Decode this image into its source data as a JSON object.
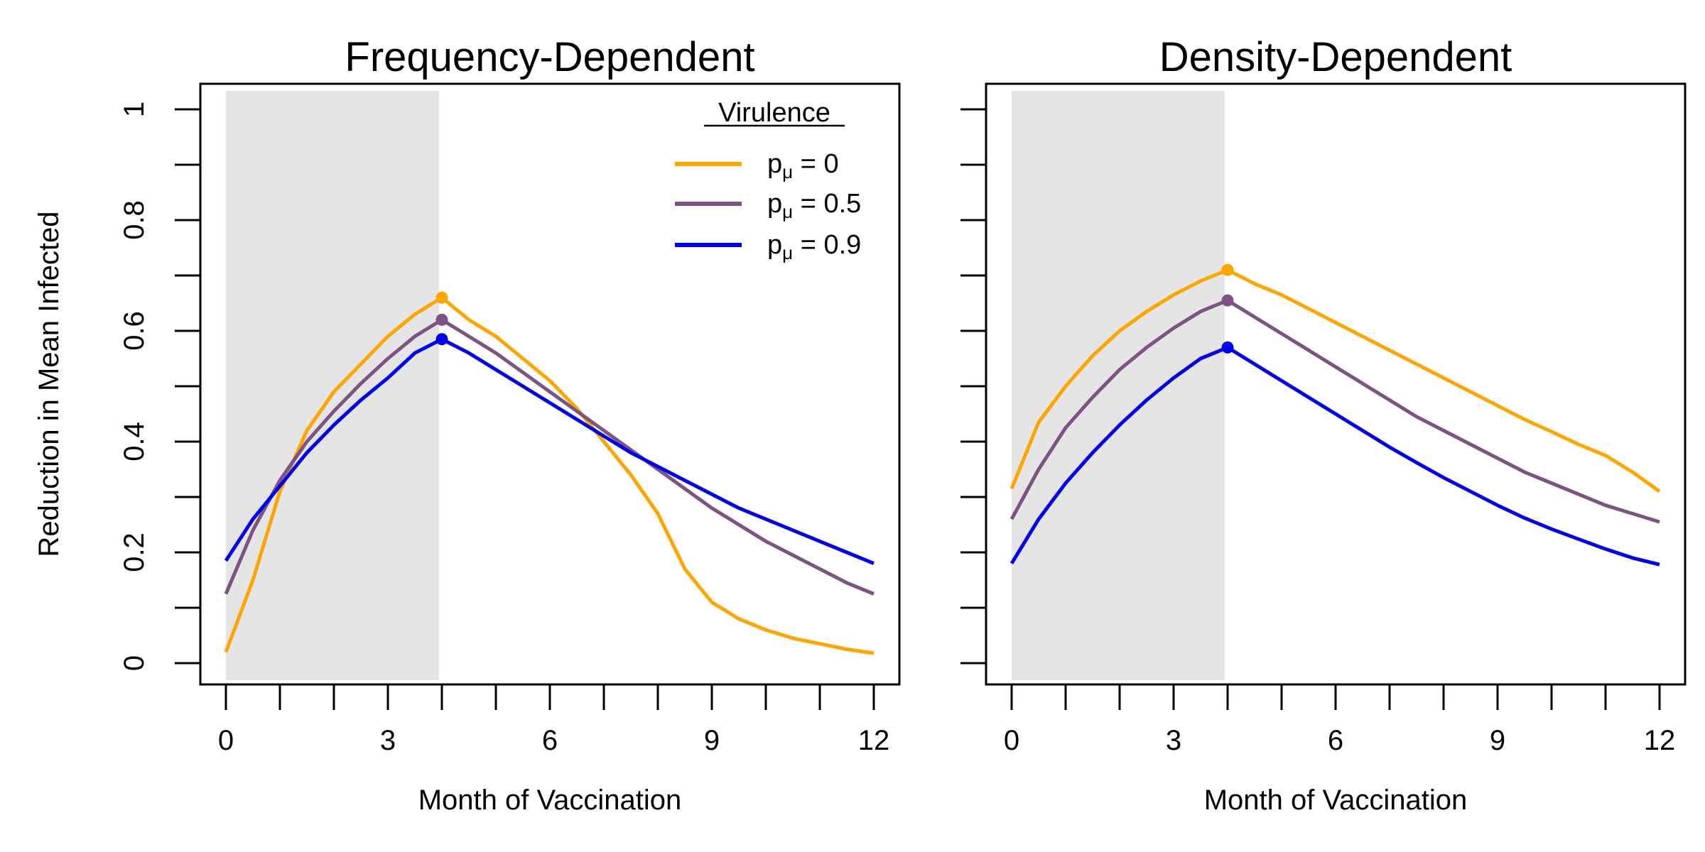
{
  "chart_data": [
    {
      "type": "line",
      "title": "Frequency-Dependent",
      "xlabel": "Month of Vaccination",
      "ylabel": "Reduction in Mean Infected",
      "xlim": [
        0,
        12
      ],
      "ylim": [
        0,
        1
      ],
      "x_ticks": [
        0,
        3,
        6,
        9,
        12
      ],
      "y_ticks": [
        0,
        0.2,
        0.4,
        0.6,
        0.8,
        1
      ],
      "shaded_x": [
        0,
        4
      ],
      "x": [
        0,
        0.5,
        1,
        1.5,
        2,
        2.5,
        3,
        3.5,
        4,
        4.5,
        5,
        5.5,
        6,
        6.5,
        7,
        7.5,
        8,
        8.5,
        9,
        9.5,
        10,
        10.5,
        11,
        11.5,
        12
      ],
      "series": [
        {
          "name": "0",
          "color": "#FFA500",
          "marker_x": 4,
          "values": [
            0.02,
            0.15,
            0.31,
            0.42,
            0.49,
            0.54,
            0.59,
            0.63,
            0.66,
            0.62,
            0.59,
            0.55,
            0.51,
            0.46,
            0.4,
            0.34,
            0.27,
            0.17,
            0.11,
            0.08,
            0.06,
            0.045,
            0.035,
            0.025,
            0.018
          ]
        },
        {
          "name": "0.5",
          "color": "#7D5383",
          "marker_x": 4,
          "values": [
            0.125,
            0.24,
            0.33,
            0.4,
            0.455,
            0.505,
            0.55,
            0.59,
            0.62,
            0.59,
            0.56,
            0.525,
            0.49,
            0.455,
            0.42,
            0.385,
            0.35,
            0.315,
            0.28,
            0.25,
            0.22,
            0.195,
            0.17,
            0.145,
            0.125
          ]
        },
        {
          "name": "0.9",
          "color": "#0000EE",
          "marker_x": 4,
          "values": [
            0.185,
            0.26,
            0.32,
            0.38,
            0.43,
            0.475,
            0.515,
            0.56,
            0.585,
            0.56,
            0.53,
            0.5,
            0.47,
            0.44,
            0.41,
            0.38,
            0.355,
            0.33,
            0.305,
            0.28,
            0.26,
            0.24,
            0.22,
            0.2,
            0.18
          ]
        }
      ],
      "legend": {
        "title": "Virulence",
        "position": "top-right",
        "label_prefix": "p",
        "label_sub": "μ",
        "label_eq": " = "
      }
    },
    {
      "type": "line",
      "title": "Density-Dependent",
      "xlabel": "Month of Vaccination",
      "ylabel": "",
      "xlim": [
        0,
        12
      ],
      "ylim": [
        0,
        1
      ],
      "x_ticks": [
        0,
        3,
        6,
        9,
        12
      ],
      "y_ticks": [
        0,
        0.2,
        0.4,
        0.6,
        0.8,
        1
      ],
      "shaded_x": [
        0,
        4
      ],
      "x": [
        0,
        0.5,
        1,
        1.5,
        2,
        2.5,
        3,
        3.5,
        4,
        4.5,
        5,
        5.5,
        6,
        6.5,
        7,
        7.5,
        8,
        8.5,
        9,
        9.5,
        10,
        10.5,
        11,
        11.5,
        12
      ],
      "series": [
        {
          "name": "0",
          "color": "#FFA500",
          "marker_x": 4,
          "values": [
            0.315,
            0.435,
            0.5,
            0.555,
            0.6,
            0.635,
            0.665,
            0.69,
            0.71,
            0.685,
            0.665,
            0.64,
            0.615,
            0.59,
            0.565,
            0.54,
            0.515,
            0.49,
            0.465,
            0.44,
            0.418,
            0.395,
            0.375,
            0.345,
            0.31
          ]
        },
        {
          "name": "0.5",
          "color": "#7D5383",
          "marker_x": 4,
          "values": [
            0.26,
            0.35,
            0.425,
            0.48,
            0.53,
            0.57,
            0.605,
            0.635,
            0.655,
            0.625,
            0.595,
            0.565,
            0.535,
            0.505,
            0.475,
            0.445,
            0.42,
            0.395,
            0.37,
            0.345,
            0.325,
            0.305,
            0.285,
            0.27,
            0.255
          ]
        },
        {
          "name": "0.9",
          "color": "#0000EE",
          "marker_x": 4,
          "values": [
            0.18,
            0.26,
            0.325,
            0.38,
            0.43,
            0.475,
            0.515,
            0.55,
            0.57,
            0.54,
            0.51,
            0.48,
            0.45,
            0.42,
            0.39,
            0.362,
            0.335,
            0.31,
            0.285,
            0.262,
            0.242,
            0.224,
            0.206,
            0.19,
            0.178
          ]
        }
      ]
    }
  ]
}
